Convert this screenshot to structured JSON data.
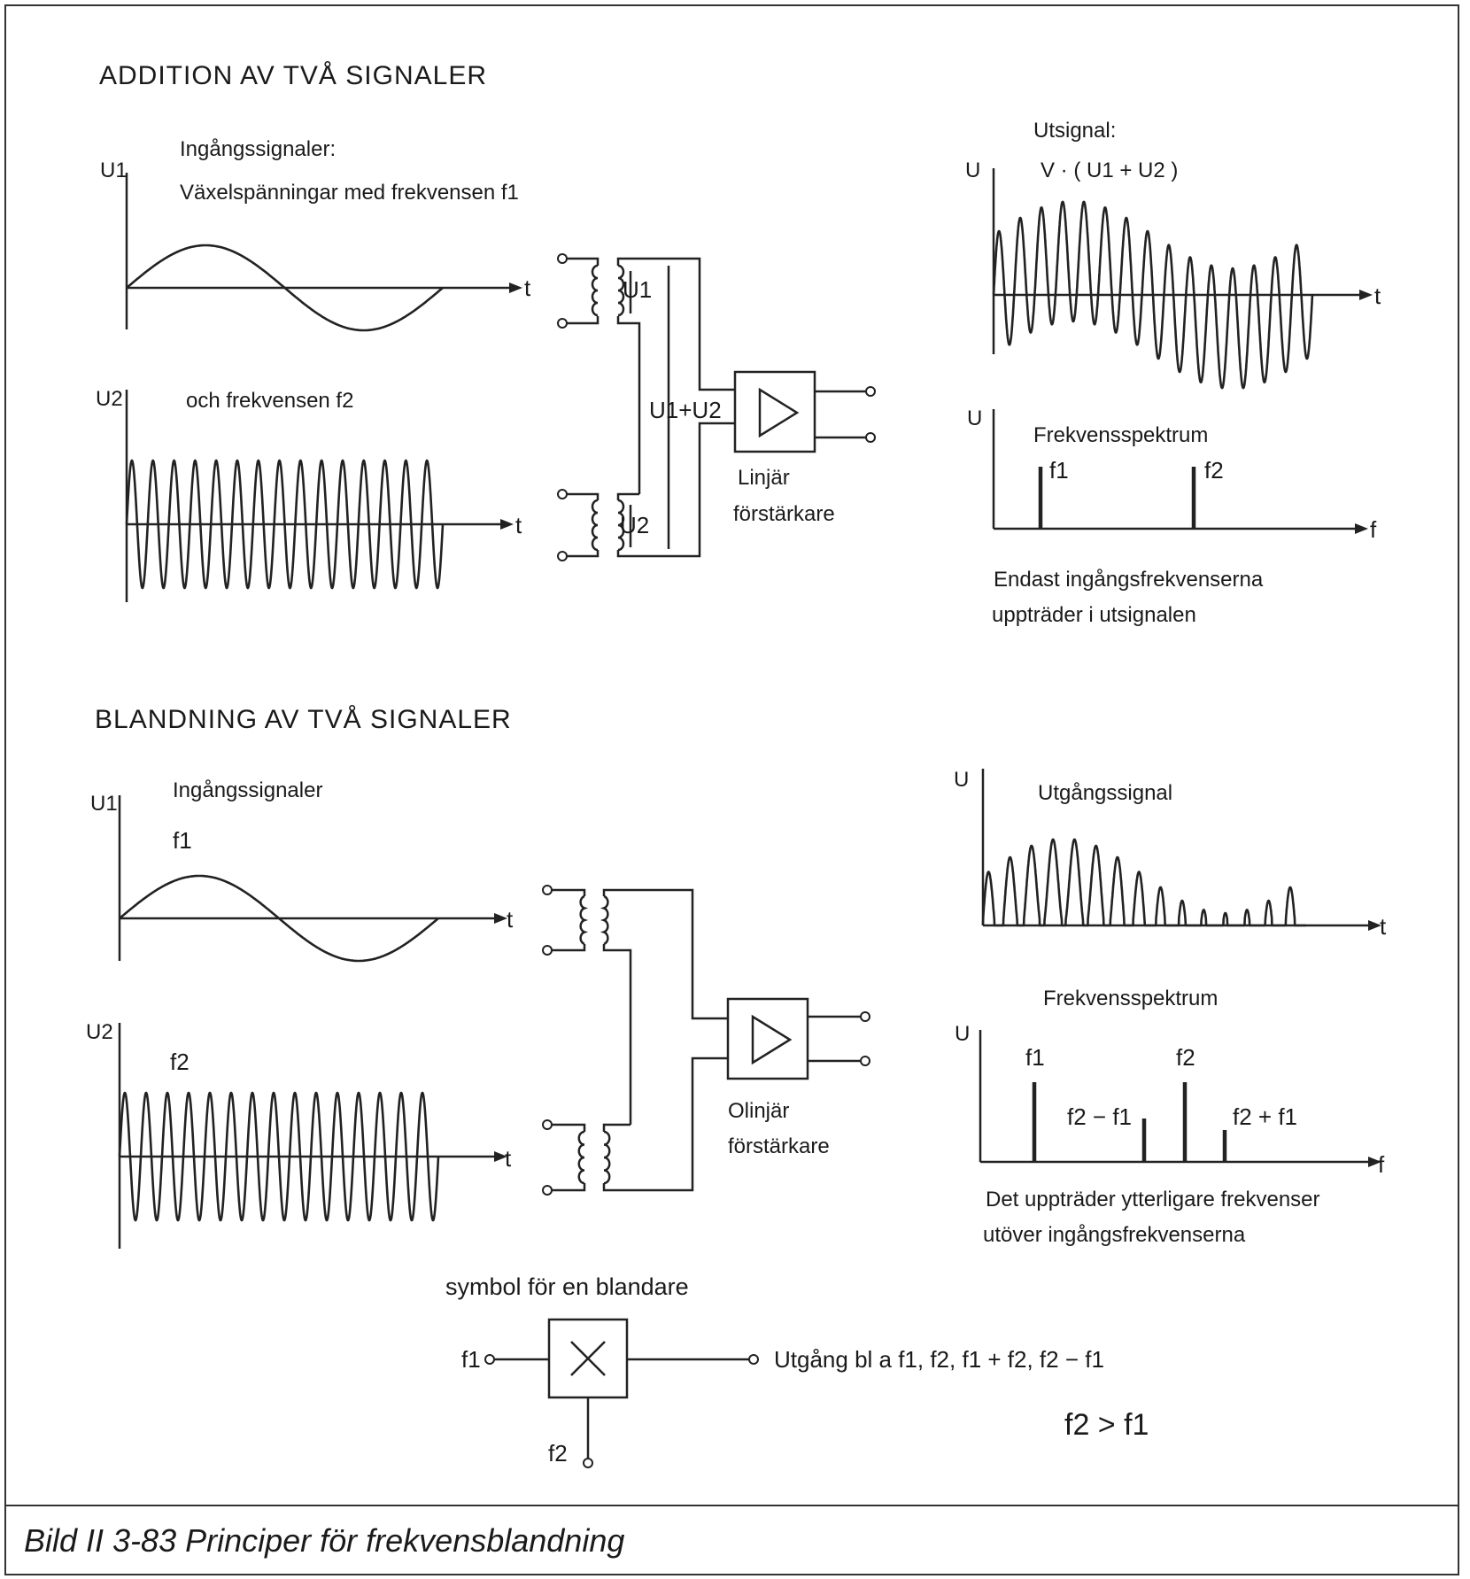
{
  "addition": {
    "title": "ADDITION AV TVÅ SIGNALER",
    "inputs_heading": "Ingångssignaler:",
    "input1_desc": "Växelspänningar med frekvensen f1",
    "input2_desc": "och frekvensen f2",
    "u1_axis": "U1",
    "u2_axis": "U2",
    "time_label": "t",
    "transformer1_label": "U1",
    "transformer2_label": "U2",
    "sum_label": "U1+U2",
    "amplifier_label_line1": "Linjär",
    "amplifier_label_line2": "förstärkare",
    "output_heading": "Utsignal:",
    "output_formula": "V · ( U1 + U2 )",
    "u_axis": "U",
    "spectrum_heading": "Frekvensspektrum",
    "spectrum_lines": [
      "f1",
      "f2"
    ],
    "freq_label": "f",
    "note_line1": "Endast ingångsfrekvenserna",
    "note_line2": "uppträder i utsignalen"
  },
  "mixing": {
    "title": "BLANDNING AV TVÅ SIGNALER",
    "inputs_heading": "Ingångssignaler",
    "f1_label": "f1",
    "f2_label": "f2",
    "u1_axis": "U1",
    "u2_axis": "U2",
    "time_label": "t",
    "amplifier_label_line1": "Olinjär",
    "amplifier_label_line2": "förstärkare",
    "output_heading": "Utgångssignal",
    "u_axis": "U",
    "spectrum_heading": "Frekvensspektrum",
    "spectrum_lines": [
      "f1",
      "f2 − f1",
      "f2",
      "f2 + f1"
    ],
    "freq_label": "f",
    "note_line1": "Det uppträder ytterligare frekvenser",
    "note_line2": "utöver ingångsfrekvenserna"
  },
  "mixer_symbol": {
    "heading": "symbol för en blandare",
    "input1": "f1",
    "input2": "f2",
    "output": "Utgång bl a  f1,  f2,  f1  +  f2,  f2  −  f1",
    "condition": "f2 > f1"
  },
  "caption": "Bild II 3-83  Principer för frekvensblandning"
}
